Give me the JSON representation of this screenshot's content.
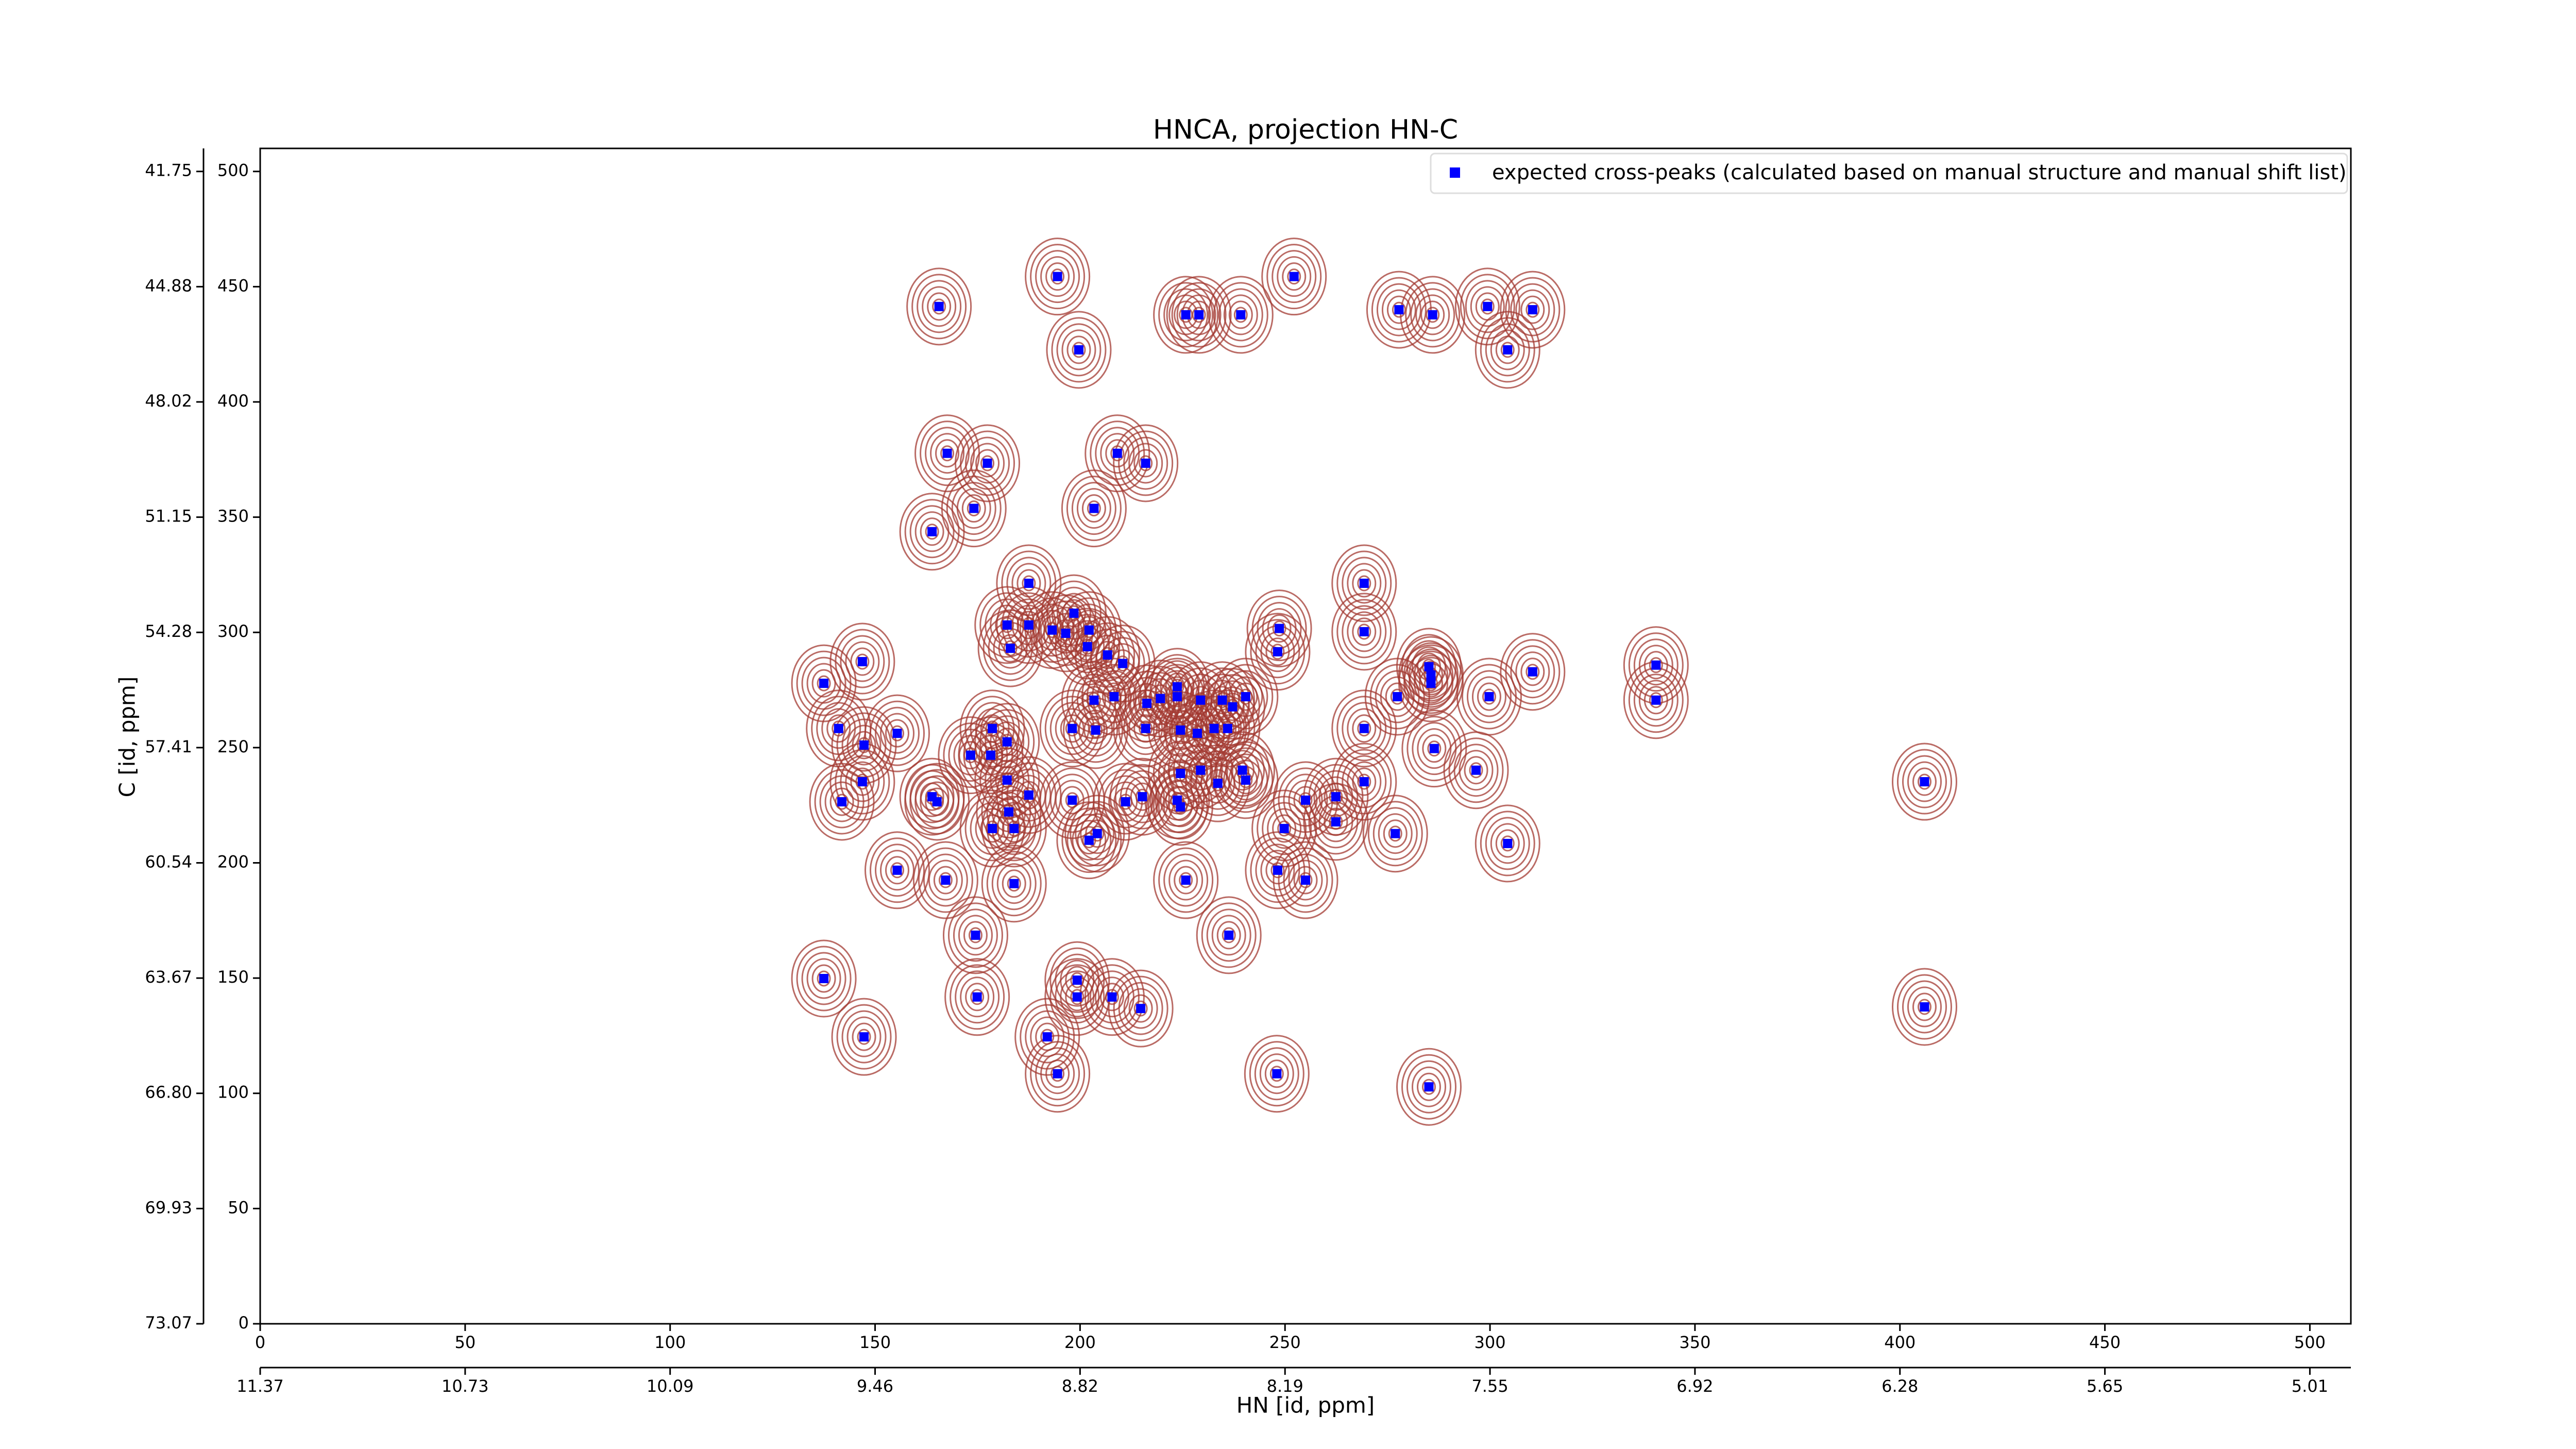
{
  "chart_data": {
    "type": "scatter",
    "title": "HNCA, projection HN-C",
    "xlabel": "HN [id, ppm]",
    "ylabel": "C [id, ppm]",
    "contour_color": "#a33a32",
    "series": [
      {
        "name": "expected cross-peaks (calculated based on manual structure and manual shift list)",
        "color": "#0000ff",
        "x": [
          165.6,
          194.5,
          252.2,
          199.7,
          225.8,
          229.0,
          239.2,
          277.8,
          286.0,
          299.4,
          310.4,
          304.3,
          167.6,
          177.4,
          209.1,
          216.0,
          174.1,
          203.4,
          163.9,
          187.5,
          269.3,
          182.2,
          187.5,
          193.2,
          198.5,
          183.0,
          196.5,
          202.2,
          201.8,
          206.7,
          210.4,
          248.6,
          269.3,
          248.2,
          146.9,
          137.5,
          285.1,
          285.6,
          285.6,
          310.4,
          340.5,
          340.5,
          203.4,
          208.3,
          223.7,
          223.7,
          219.6,
          216.3,
          229.4,
          234.7,
          240.4,
          237.2,
          299.8,
          277.4,
          141.1,
          155.4,
          178.6,
          198.1,
          203.8,
          216.0,
          224.5,
          228.6,
          232.7,
          236.0,
          269.3,
          147.3,
          173.3,
          178.2,
          182.2,
          286.4,
          229.4,
          239.6,
          240.4,
          296.6,
          182.2,
          146.9,
          224.5,
          269.3,
          406.0,
          233.6,
          141.9,
          163.9,
          165.1,
          198.1,
          187.5,
          211.1,
          215.2,
          223.7,
          224.5,
          255.0,
          262.4,
          178.6,
          183.9,
          182.6,
          249.8,
          262.4,
          276.9,
          202.2,
          204.2,
          304.3,
          155.4,
          167.2,
          183.9,
          225.8,
          248.2,
          255.0,
          174.5,
          236.3,
          137.5,
          174.9,
          199.3,
          199.3,
          207.8,
          214.8,
          406.0,
          147.3,
          192.0,
          194.5,
          248.0,
          285.1
        ],
        "y": [
          441.4,
          454.4,
          454.4,
          422.6,
          437.8,
          437.8,
          437.8,
          440.0,
          437.8,
          441.4,
          440.0,
          422.6,
          377.7,
          373.4,
          377.7,
          373.4,
          353.8,
          353.8,
          343.7,
          321.3,
          321.3,
          303.2,
          303.2,
          301.0,
          308.3,
          293.1,
          299.6,
          301.0,
          293.8,
          290.2,
          286.5,
          301.7,
          300.3,
          291.6,
          287.3,
          277.9,
          285.1,
          281.5,
          277.9,
          282.9,
          285.8,
          270.6,
          270.6,
          272.1,
          276.4,
          272.1,
          271.3,
          269.2,
          270.6,
          270.6,
          272.1,
          267.7,
          272.1,
          272.1,
          258.3,
          256.2,
          258.3,
          258.3,
          257.6,
          258.3,
          257.6,
          256.2,
          258.3,
          258.3,
          258.3,
          251.1,
          246.7,
          246.7,
          252.5,
          249.6,
          240.2,
          240.2,
          235.9,
          240.2,
          235.9,
          235.2,
          238.8,
          235.2,
          235.2,
          234.5,
          226.5,
          228.7,
          226.5,
          227.2,
          229.4,
          226.5,
          228.7,
          227.2,
          224.3,
          227.2,
          228.7,
          214.9,
          214.9,
          222.1,
          214.9,
          217.8,
          212.7,
          209.8,
          212.7,
          208.4,
          196.8,
          192.5,
          191.0,
          192.5,
          196.8,
          192.5,
          168.6,
          168.6,
          149.8,
          141.8,
          149.1,
          141.8,
          141.8,
          136.8,
          137.5,
          124.5,
          124.5,
          108.5,
          108.5,
          102.8
        ]
      }
    ],
    "xlim": [
      0,
      510
    ],
    "ylim": [
      0,
      510
    ],
    "xticks": [
      0,
      50,
      100,
      150,
      200,
      250,
      300,
      350,
      400,
      450,
      500
    ],
    "yticks": [
      0,
      50,
      100,
      150,
      200,
      250,
      300,
      350,
      400,
      450,
      500
    ],
    "x2ticks": [
      {
        "value": 0,
        "label": "11.37"
      },
      {
        "value": 50,
        "label": "10.73"
      },
      {
        "value": 100,
        "label": "10.09"
      },
      {
        "value": 150,
        "label": "9.46"
      },
      {
        "value": 200,
        "label": "8.82"
      },
      {
        "value": 250,
        "label": "8.19"
      },
      {
        "value": 300,
        "label": "7.55"
      },
      {
        "value": 350,
        "label": "6.92"
      },
      {
        "value": 400,
        "label": "6.28"
      },
      {
        "value": 450,
        "label": "5.65"
      },
      {
        "value": 500,
        "label": "5.01"
      }
    ],
    "y2ticks": [
      {
        "value": 0,
        "label": "73.07"
      },
      {
        "value": 50,
        "label": "69.93"
      },
      {
        "value": 100,
        "label": "66.80"
      },
      {
        "value": 150,
        "label": "63.67"
      },
      {
        "value": 200,
        "label": "60.54"
      },
      {
        "value": 250,
        "label": "57.41"
      },
      {
        "value": 300,
        "label": "54.28"
      },
      {
        "value": 350,
        "label": "51.15"
      },
      {
        "value": 400,
        "label": "48.02"
      },
      {
        "value": 450,
        "label": "44.88"
      },
      {
        "value": 500,
        "label": "41.75"
      }
    ]
  }
}
